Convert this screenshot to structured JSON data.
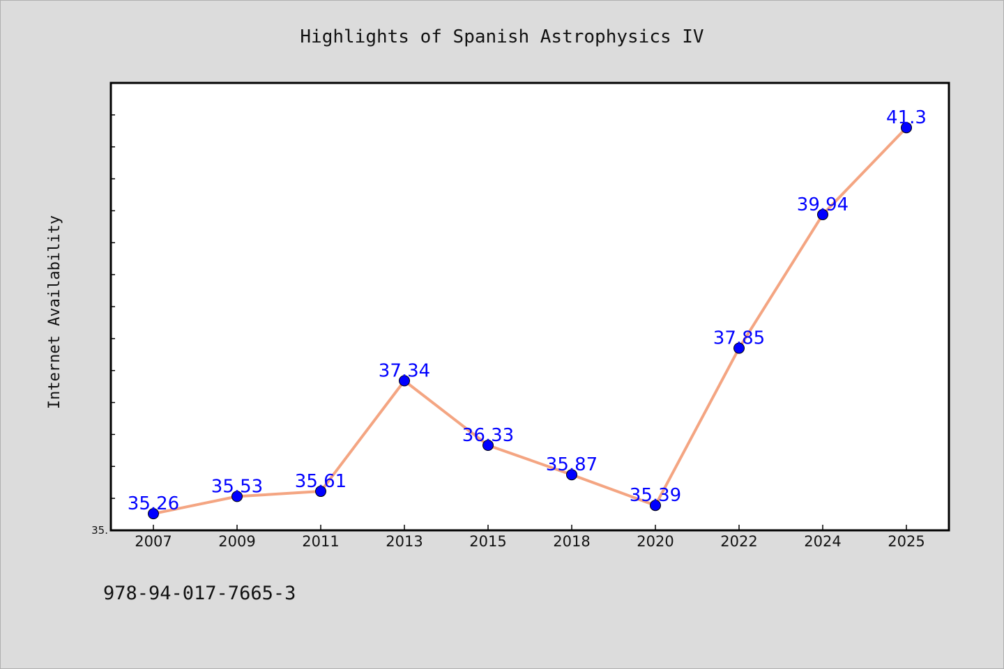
{
  "chart_data": {
    "type": "line",
    "title": "Highlights of Spanish Astrophysics IV",
    "xlabel": "",
    "ylabel": "Internet Availability",
    "categories": [
      "2007",
      "2009",
      "2011",
      "2013",
      "2015",
      "2018",
      "2020",
      "2022",
      "2024",
      "2025"
    ],
    "series": [
      {
        "values": [
          35.26,
          35.53,
          35.61,
          37.34,
          36.33,
          35.87,
          35.39,
          37.85,
          39.94,
          41.3
        ],
        "data_labels": [
          "35.26",
          "35.53",
          "35.61",
          "37.34",
          "36.33",
          "35.87",
          "35.39",
          "37.85",
          "39.94",
          "41.3"
        ]
      }
    ],
    "ylim": [
      35.0,
      42.0
    ],
    "y_tick_label": "35.",
    "grid": false,
    "colors": {
      "line": "#f4a582",
      "marker": "#0000ff",
      "data_label": "#0000ff",
      "plot_background": "#ffffff",
      "figure_background": "#dcdcdc"
    }
  },
  "footer": {
    "isbn": "978-94-017-7665-3"
  }
}
